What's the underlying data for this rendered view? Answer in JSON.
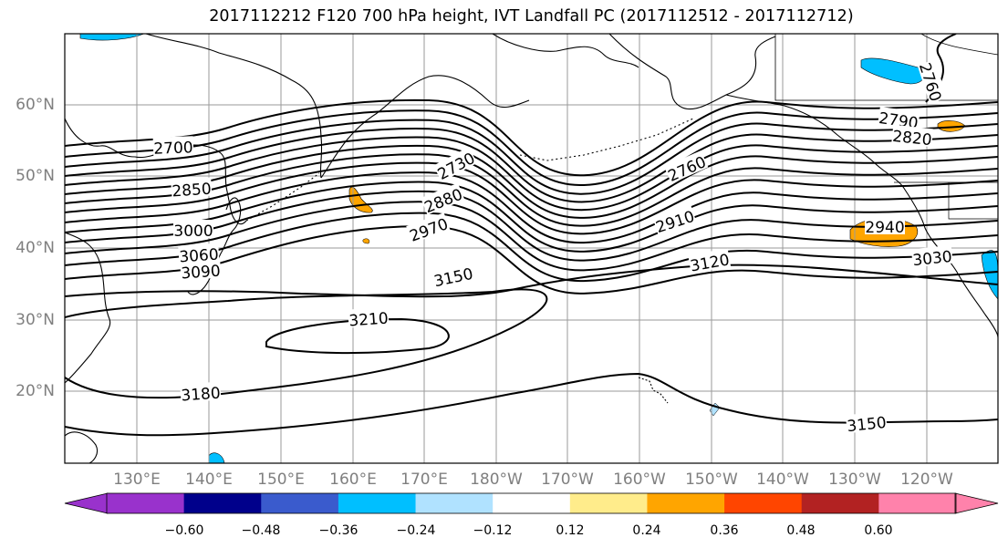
{
  "title": "2017112212 F120 700 hPa height, IVT Landfall PC (2017112512 - 2017112712)",
  "lat_labels": [
    "60°N",
    "50°N",
    "40°N",
    "30°N",
    "20°N"
  ],
  "lon_labels": [
    "130°E",
    "140°E",
    "150°E",
    "160°E",
    "170°E",
    "180°W",
    "170°W",
    "160°W",
    "150°W",
    "140°W",
    "130°W",
    "120°W"
  ],
  "contour_labels": [
    "2700",
    "2730",
    "2760",
    "2790",
    "2820",
    "2850",
    "2880",
    "2910",
    "2940",
    "2970",
    "3000",
    "3030",
    "3060",
    "3090",
    "3120",
    "3150",
    "3150",
    "3180",
    "3210",
    "2760"
  ],
  "colorbar": {
    "ticks": [
      "−0.60",
      "−0.48",
      "−0.36",
      "−0.24",
      "−0.12",
      "0.12",
      "0.24",
      "0.36",
      "0.48",
      "0.60"
    ],
    "colors": [
      "#9932cc",
      "#00008b",
      "#3a5bcd",
      "#00bfff",
      "#b0e2ff",
      "#ffffff",
      "#ffec8b",
      "#ffa500",
      "#ff4500",
      "#b22222",
      "#ff82ab"
    ]
  }
}
